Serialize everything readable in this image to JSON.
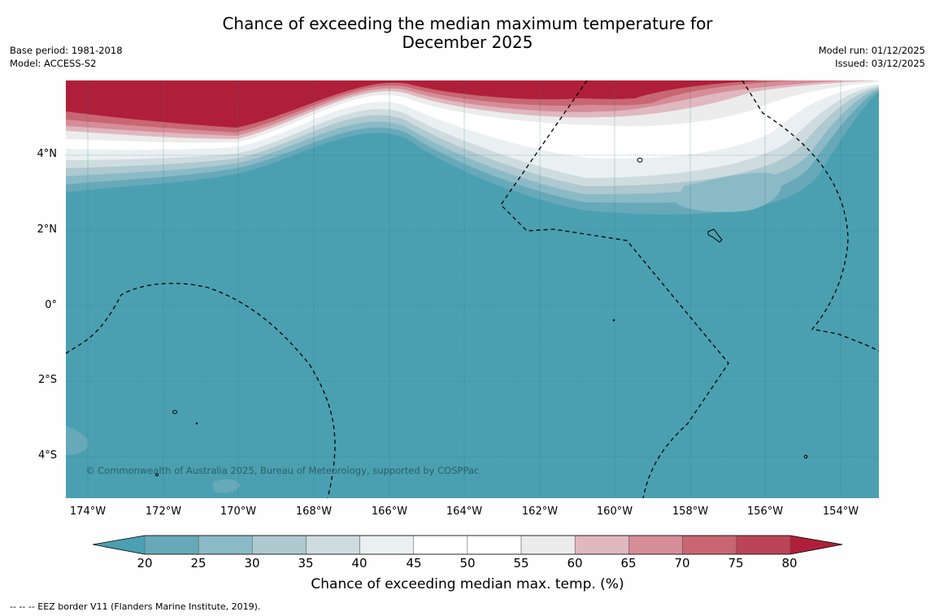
{
  "title": {
    "line1": "Chance of exceeding the median maximum temperature for",
    "line2": "December 2025"
  },
  "meta_left": {
    "base_period": "Base period: 1981-2018",
    "model": "Model: ACCESS-S2"
  },
  "meta_right": {
    "model_run": "Model run: 01/12/2025",
    "issued": "Issued: 03/12/2025"
  },
  "copyright": "© Commonwealth of Australia 2025, Bureau of Meteorology, supported by COSPPac",
  "latitude_labels": [
    "4°N",
    "2°N",
    "0°",
    "2°S",
    "4°S"
  ],
  "longitude_labels": [
    "174°W",
    "172°W",
    "170°W",
    "168°W",
    "166°W",
    "164°W",
    "162°W",
    "160°W",
    "158°W",
    "156°W",
    "154°W"
  ],
  "colorbar": {
    "ticks": [
      "20",
      "25",
      "30",
      "35",
      "40",
      "45",
      "50",
      "55",
      "60",
      "65",
      "70",
      "75",
      "80"
    ],
    "colors": [
      "#4aa0b1",
      "#67a9b9",
      "#8abac6",
      "#aec9cf",
      "#cfdcdf",
      "#eaf0f1",
      "#ffffff",
      "#ffffff",
      "#ececec",
      "#e0b8bf",
      "#d68d97",
      "#c86672",
      "#bb4456",
      "#b01f3a"
    ],
    "label": "Chance of exceeding median max. temp. (%)"
  },
  "footnote": "--  --  -- EEZ border V11 (Flanders Marine Institute, 2019).",
  "map_colors": {
    "ocean": "#4aa0b1",
    "warm_core": "#b01f3a"
  }
}
